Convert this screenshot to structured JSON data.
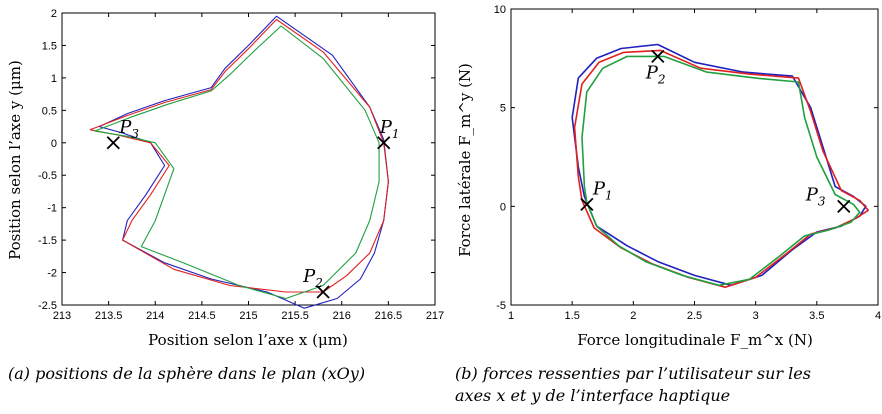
{
  "chart_data": [
    {
      "type": "line",
      "xlabel": "Position selon l’axe x (μm)",
      "ylabel": "Position selon l’axe y (μm)",
      "caption": "(a) positions de la sphère dans le plan (xOy)",
      "xlim": [
        213,
        217
      ],
      "ylim": [
        -2.5,
        2
      ],
      "xticks": [
        "213",
        "213.5",
        "214",
        "214.5",
        "215",
        "215.5",
        "216",
        "216.5",
        "217"
      ],
      "yticks": [
        "2",
        "1.5",
        "1",
        "0.5",
        "0",
        "-0.5",
        "-1",
        "-1.5",
        "-2",
        "-2.5"
      ],
      "series": [
        {
          "color": "#2020c0",
          "x": [
            213.4,
            213.7,
            214.1,
            214.6,
            214.75,
            215.0,
            215.3,
            215.9,
            216.3,
            216.45,
            216.5,
            216.45,
            216.35,
            216.2,
            215.95,
            215.6,
            215.2,
            214.6,
            214.1,
            213.65,
            213.7,
            213.9,
            214.1,
            213.95,
            213.65,
            213.4
          ],
          "y": [
            0.25,
            0.45,
            0.65,
            0.85,
            1.15,
            1.5,
            1.95,
            1.35,
            0.55,
            0.05,
            -0.6,
            -1.2,
            -1.7,
            -2.1,
            -2.4,
            -2.55,
            -2.3,
            -2.1,
            -1.85,
            -1.5,
            -1.2,
            -0.8,
            -0.35,
            0.0,
            0.15,
            0.25
          ]
        },
        {
          "color": "#e02020",
          "x": [
            213.3,
            213.7,
            214.1,
            214.6,
            214.75,
            215.0,
            215.3,
            215.8,
            216.3,
            216.45,
            216.5,
            216.45,
            216.3,
            216.05,
            215.8,
            215.4,
            214.8,
            214.2,
            213.65,
            213.75,
            213.95,
            214.15,
            213.95,
            213.6,
            213.3
          ],
          "y": [
            0.2,
            0.42,
            0.62,
            0.82,
            1.1,
            1.45,
            1.9,
            1.4,
            0.55,
            0.0,
            -0.6,
            -1.2,
            -1.7,
            -2.05,
            -2.3,
            -2.3,
            -2.2,
            -1.95,
            -1.5,
            -1.2,
            -0.8,
            -0.35,
            0.0,
            0.12,
            0.2
          ]
        },
        {
          "color": "#20a040",
          "x": [
            213.35,
            213.75,
            214.15,
            214.6,
            214.8,
            215.05,
            215.35,
            215.8,
            216.25,
            216.4,
            216.4,
            216.3,
            216.15,
            215.8,
            215.4,
            214.9,
            214.3,
            213.85,
            214.0,
            214.2,
            214.0,
            213.7,
            213.35
          ],
          "y": [
            0.18,
            0.4,
            0.6,
            0.8,
            1.05,
            1.4,
            1.8,
            1.3,
            0.5,
            0.0,
            -0.6,
            -1.2,
            -1.7,
            -2.2,
            -2.4,
            -2.2,
            -1.85,
            -1.6,
            -1.2,
            -0.4,
            0.0,
            0.1,
            0.18
          ]
        }
      ],
      "points": [
        {
          "label": "P",
          "sub": "1",
          "x": 216.45,
          "y": 0.0
        },
        {
          "label": "P",
          "sub": "2",
          "x": 215.8,
          "y": -2.3
        },
        {
          "label": "P",
          "sub": "3",
          "x": 213.55,
          "y": 0.0
        }
      ]
    },
    {
      "type": "line",
      "xlabel": "Force longitudinale F_m^x (N)",
      "ylabel": "Force latérale F_m^y (N)",
      "caption": "(b) forces ressenties par l’utilisateur sur les axes x et y de l’interface haptique",
      "xlim": [
        1,
        4
      ],
      "ylim": [
        -5,
        10
      ],
      "xticks": [
        "1",
        "1.5",
        "2",
        "2.5",
        "3",
        "3.5",
        "4"
      ],
      "yticks": [
        "10",
        "5",
        "0",
        "-5"
      ],
      "series": [
        {
          "color": "#2020c0",
          "x": [
            1.55,
            1.5,
            1.55,
            1.7,
            1.9,
            2.2,
            2.5,
            2.9,
            3.3,
            3.45,
            3.55,
            3.65,
            3.8,
            3.9,
            3.85,
            3.7,
            3.5,
            3.3,
            3.05,
            2.8,
            2.5,
            2.2,
            1.95,
            1.7,
            1.6,
            1.55
          ],
          "y": [
            2.0,
            4.5,
            6.5,
            7.5,
            8.0,
            8.2,
            7.3,
            6.8,
            6.6,
            5.0,
            3.0,
            1.0,
            0.5,
            0.0,
            -0.5,
            -1.0,
            -1.3,
            -2.2,
            -3.5,
            -4.0,
            -3.5,
            -2.8,
            -2.0,
            -1.0,
            0.5,
            2.0
          ]
        },
        {
          "color": "#e02020",
          "x": [
            1.55,
            1.52,
            1.58,
            1.72,
            1.92,
            2.22,
            2.55,
            2.95,
            3.35,
            3.45,
            3.55,
            3.7,
            3.85,
            3.92,
            3.82,
            3.65,
            3.45,
            3.25,
            3.0,
            2.75,
            2.45,
            2.15,
            1.9,
            1.68,
            1.58,
            1.55
          ],
          "y": [
            1.5,
            4.0,
            6.2,
            7.3,
            7.8,
            7.9,
            7.0,
            6.7,
            6.5,
            4.8,
            2.8,
            0.8,
            0.3,
            -0.2,
            -0.6,
            -1.1,
            -1.4,
            -2.4,
            -3.6,
            -4.1,
            -3.6,
            -2.9,
            -2.1,
            -1.1,
            0.3,
            1.5
          ]
        },
        {
          "color": "#20a040",
          "x": [
            1.6,
            1.58,
            1.62,
            1.75,
            1.95,
            2.25,
            2.6,
            3.0,
            3.35,
            3.4,
            3.5,
            3.65,
            3.8,
            3.85,
            3.78,
            3.6,
            3.4,
            3.2,
            2.95,
            2.7,
            2.4,
            2.1,
            1.88,
            1.7,
            1.62,
            1.6
          ],
          "y": [
            1.0,
            3.5,
            5.8,
            7.0,
            7.6,
            7.6,
            6.8,
            6.5,
            6.3,
            4.5,
            2.5,
            0.6,
            0.1,
            -0.3,
            -0.8,
            -1.2,
            -1.5,
            -2.5,
            -3.7,
            -4.0,
            -3.5,
            -2.8,
            -2.0,
            -1.0,
            0.2,
            1.0
          ]
        }
      ],
      "points": [
        {
          "label": "P",
          "sub": "1",
          "x": 1.62,
          "y": 0.1
        },
        {
          "label": "P",
          "sub": "2",
          "x": 2.2,
          "y": 7.6
        },
        {
          "label": "P",
          "sub": "3",
          "x": 3.72,
          "y": 0.0
        }
      ]
    }
  ]
}
